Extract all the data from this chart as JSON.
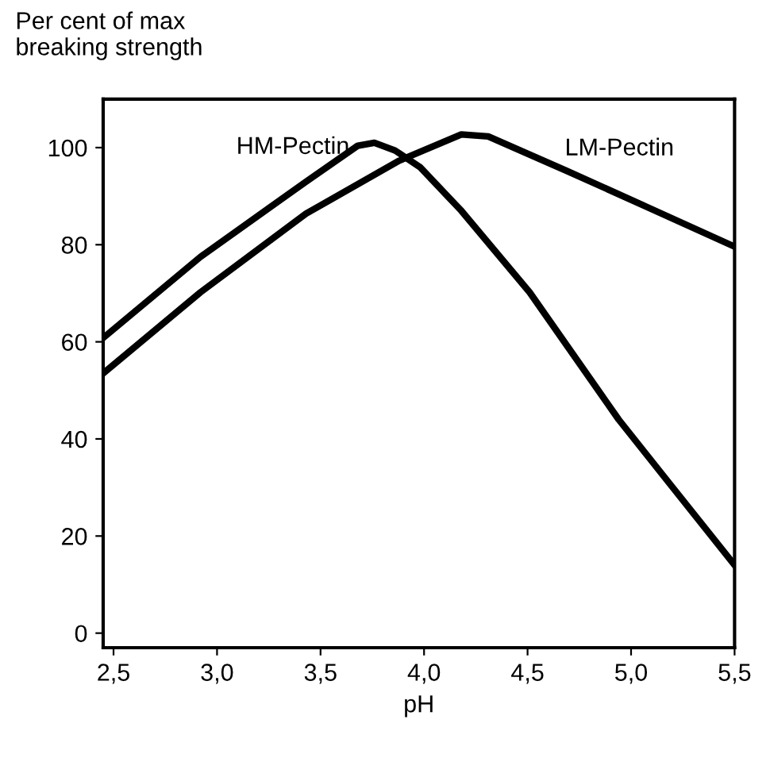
{
  "chart_data": {
    "type": "line",
    "ylabel": "Per cent of max\nbreaking strength",
    "xlabel": "pH",
    "series": [
      {
        "name": "HM-Pectin",
        "color": "#000000",
        "x": [
          2.45,
          2.92,
          3.43,
          3.68,
          3.76,
          3.86,
          3.98,
          4.18,
          4.51,
          4.94,
          5.19,
          5.5
        ],
        "values": [
          60.8,
          77.5,
          93,
          100.4,
          101,
          99.4,
          96,
          87,
          70.2,
          44,
          30.6,
          14
        ]
      },
      {
        "name": "LM-Pectin",
        "color": "#000000",
        "x": [
          2.45,
          2.92,
          3.43,
          3.88,
          4.18,
          4.31,
          4.69,
          5.07,
          5.5
        ],
        "values": [
          53.5,
          70.2,
          86.4,
          97.3,
          102.7,
          102.3,
          95.2,
          87.9,
          79.6
        ]
      }
    ],
    "xlim": [
      2.45,
      5.5
    ],
    "ylim": [
      -3,
      110
    ],
    "xticks": [
      {
        "value": 2.5,
        "label": "2,5"
      },
      {
        "value": 3.0,
        "label": "3,0"
      },
      {
        "value": 3.5,
        "label": "3,5"
      },
      {
        "value": 4.0,
        "label": "4,0"
      },
      {
        "value": 4.5,
        "label": "4,5"
      },
      {
        "value": 5.0,
        "label": "5,0"
      },
      {
        "value": 5.5,
        "label": "5,5"
      }
    ],
    "yticks": [
      0,
      20,
      40,
      60,
      80,
      100
    ],
    "grid": false,
    "legend": false,
    "marker": "none",
    "line_style": "solid"
  }
}
